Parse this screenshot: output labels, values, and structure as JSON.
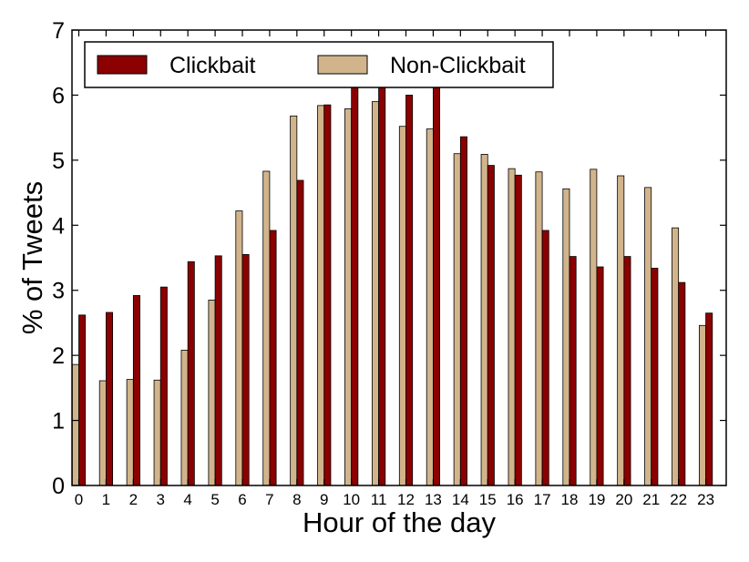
{
  "chart_data": {
    "type": "bar",
    "xlabel": "Hour of the day",
    "ylabel": "% of Tweets",
    "ylim": [
      0,
      7
    ],
    "yticks": [
      0,
      1,
      2,
      3,
      4,
      5,
      6,
      7
    ],
    "categories": [
      "0",
      "1",
      "2",
      "3",
      "4",
      "5",
      "6",
      "7",
      "8",
      "9",
      "10",
      "11",
      "12",
      "13",
      "14",
      "15",
      "16",
      "17",
      "18",
      "19",
      "20",
      "21",
      "22",
      "23"
    ],
    "grid": false,
    "legend_position": "top-left",
    "series": [
      {
        "name": "Non-Clickbait",
        "color": "#d2b48c",
        "values": [
          1.86,
          1.61,
          1.63,
          1.62,
          2.08,
          2.85,
          4.22,
          4.83,
          5.68,
          5.84,
          5.79,
          5.9,
          5.52,
          5.48,
          5.1,
          5.09,
          4.87,
          4.82,
          4.56,
          4.86,
          4.76,
          4.58,
          3.96,
          2.46
        ]
      },
      {
        "name": "Clickbait",
        "color": "#8b0000",
        "values": [
          2.62,
          2.66,
          2.92,
          3.05,
          3.44,
          3.53,
          3.55,
          3.92,
          4.69,
          5.85,
          6.12,
          6.12,
          6.0,
          6.12,
          5.36,
          4.92,
          4.77,
          3.92,
          3.52,
          3.36,
          3.52,
          3.34,
          3.12,
          2.65
        ]
      }
    ],
    "legend": [
      {
        "label": "Clickbait",
        "color": "#8b0000"
      },
      {
        "label": "Non-Clickbait",
        "color": "#d2b48c"
      }
    ]
  }
}
